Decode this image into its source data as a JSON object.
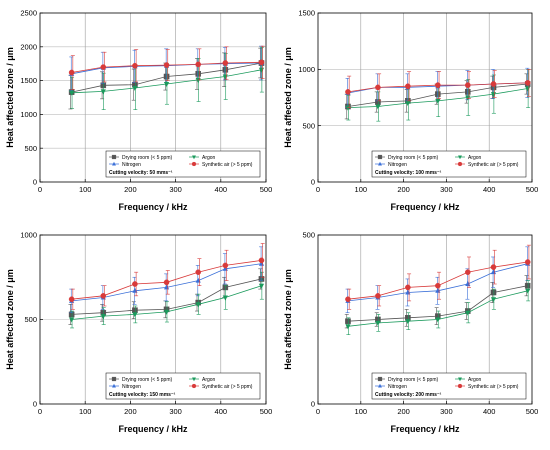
{
  "colors": {
    "Drying room (< 5 ppm)": "#555555",
    "Nitrogen": "#3a6fd8",
    "Argon": "#1a9a5c",
    "Synthetic air (> 5 ppm)": "#d83a3a"
  },
  "chart_data": [
    {
      "type": "line",
      "xlabel": "Frequency / kHz",
      "ylabel": "Heat affected zone / μm",
      "xlim": [
        0,
        500
      ],
      "ylim": [
        0,
        2500
      ],
      "xticks": [
        "0",
        "100",
        "200",
        "300",
        "400",
        "500"
      ],
      "yticks": [
        "0",
        "500",
        "1000",
        "1500",
        "2000",
        "2500"
      ],
      "note": "Cutting velocity: 50 mms⁻¹",
      "x": [
        70,
        140,
        210,
        280,
        350,
        410,
        490
      ],
      "series": [
        {
          "name": "Drying room (< 5 ppm)",
          "marker": "square",
          "values": [
            1330,
            1430,
            1440,
            1560,
            1600,
            1660,
            1760
          ],
          "errors": [
            250,
            200,
            230,
            200,
            230,
            250,
            220
          ]
        },
        {
          "name": "Nitrogen",
          "marker": "triangle-up",
          "values": [
            1600,
            1690,
            1710,
            1720,
            1740,
            1750,
            1760
          ],
          "errors": [
            250,
            230,
            240,
            250,
            230,
            240,
            250
          ]
        },
        {
          "name": "Argon",
          "marker": "triangle-down",
          "values": [
            1320,
            1340,
            1390,
            1450,
            1510,
            1560,
            1660
          ],
          "errors": [
            230,
            270,
            320,
            300,
            320,
            340,
            330
          ]
        },
        {
          "name": "Synthetic air (> 5 ppm)",
          "marker": "circle",
          "values": [
            1620,
            1700,
            1720,
            1730,
            1740,
            1760,
            1770
          ],
          "errors": [
            250,
            220,
            240,
            230,
            230,
            240,
            240
          ]
        }
      ]
    },
    {
      "type": "line",
      "xlabel": "Frequency / kHz",
      "ylabel": "Heat affected zone / μm",
      "xlim": [
        0,
        500
      ],
      "ylim": [
        0,
        1500
      ],
      "xticks": [
        "0",
        "100",
        "200",
        "300",
        "400",
        "500"
      ],
      "yticks": [
        "0",
        "500",
        "1000",
        "1500"
      ],
      "note": "Cutting velocity: 100 mms⁻¹",
      "x": [
        70,
        140,
        210,
        280,
        350,
        410,
        490
      ],
      "series": [
        {
          "name": "Drying room (< 5 ppm)",
          "marker": "square",
          "values": [
            670,
            710,
            720,
            780,
            800,
            840,
            870
          ],
          "errors": [
            110,
            90,
            100,
            90,
            100,
            100,
            90
          ]
        },
        {
          "name": "Nitrogen",
          "marker": "triangle-up",
          "values": [
            790,
            840,
            840,
            850,
            860,
            870,
            880
          ],
          "errors": [
            130,
            120,
            120,
            130,
            130,
            130,
            130
          ]
        },
        {
          "name": "Argon",
          "marker": "triangle-down",
          "values": [
            660,
            670,
            700,
            720,
            750,
            780,
            830
          ],
          "errors": [
            110,
            130,
            150,
            140,
            160,
            170,
            170
          ]
        },
        {
          "name": "Synthetic air (> 5 ppm)",
          "marker": "circle",
          "values": [
            800,
            840,
            850,
            860,
            860,
            870,
            880
          ],
          "errors": [
            140,
            120,
            130,
            120,
            120,
            120,
            120
          ]
        }
      ]
    },
    {
      "type": "line",
      "xlabel": "Frequency / kHz",
      "ylabel": "Heat affected zone / μm",
      "xlim": [
        0,
        500
      ],
      "ylim": [
        0,
        1000
      ],
      "xticks": [
        "0",
        "100",
        "200",
        "300",
        "400",
        "500"
      ],
      "yticks": [
        "0",
        "500",
        "1000"
      ],
      "note": "Cutting velocity: 150 mms⁻¹",
      "x": [
        70,
        140,
        210,
        280,
        350,
        410,
        490
      ],
      "series": [
        {
          "name": "Drying room (< 5 ppm)",
          "marker": "square",
          "values": [
            530,
            540,
            555,
            560,
            600,
            690,
            740
          ],
          "errors": [
            60,
            50,
            50,
            50,
            50,
            60,
            60
          ]
        },
        {
          "name": "Nitrogen",
          "marker": "triangle-up",
          "values": [
            610,
            630,
            670,
            690,
            730,
            800,
            830
          ],
          "errors": [
            70,
            70,
            80,
            80,
            90,
            90,
            100
          ]
        },
        {
          "name": "Argon",
          "marker": "triangle-down",
          "values": [
            500,
            520,
            530,
            545,
            590,
            630,
            700
          ],
          "errors": [
            50,
            50,
            50,
            60,
            60,
            70,
            80
          ]
        },
        {
          "name": "Synthetic air (> 5 ppm)",
          "marker": "circle",
          "values": [
            620,
            640,
            710,
            720,
            780,
            820,
            850
          ],
          "errors": [
            60,
            60,
            70,
            70,
            80,
            90,
            100
          ]
        }
      ]
    },
    {
      "type": "line",
      "xlabel": "Frequency / kHz",
      "ylabel": "Heat affected zone / μm",
      "xlim": [
        0,
        500
      ],
      "ylim": [
        0,
        500
      ],
      "xticks": [
        "0",
        "100",
        "200",
        "300",
        "400",
        "500"
      ],
      "yticks": [
        "0",
        "500"
      ],
      "note": "Cutting velocity: 200 mms⁻¹",
      "x": [
        70,
        140,
        210,
        280,
        350,
        410,
        490
      ],
      "series": [
        {
          "name": "Drying room (< 5 ppm)",
          "marker": "square",
          "values": [
            245,
            250,
            255,
            260,
            275,
            330,
            350
          ],
          "errors": [
            20,
            20,
            25,
            25,
            25,
            30,
            30
          ]
        },
        {
          "name": "Nitrogen",
          "marker": "triangle-up",
          "values": [
            305,
            315,
            330,
            335,
            355,
            390,
            415
          ],
          "errors": [
            35,
            35,
            40,
            40,
            45,
            45,
            50
          ]
        },
        {
          "name": "Argon",
          "marker": "triangle-down",
          "values": [
            230,
            240,
            245,
            250,
            270,
            310,
            335
          ],
          "errors": [
            25,
            25,
            25,
            25,
            30,
            30,
            30
          ]
        },
        {
          "name": "Synthetic air (> 5 ppm)",
          "marker": "circle",
          "values": [
            310,
            320,
            345,
            350,
            390,
            405,
            420
          ],
          "errors": [
            30,
            30,
            40,
            40,
            45,
            50,
            50
          ]
        }
      ]
    }
  ]
}
